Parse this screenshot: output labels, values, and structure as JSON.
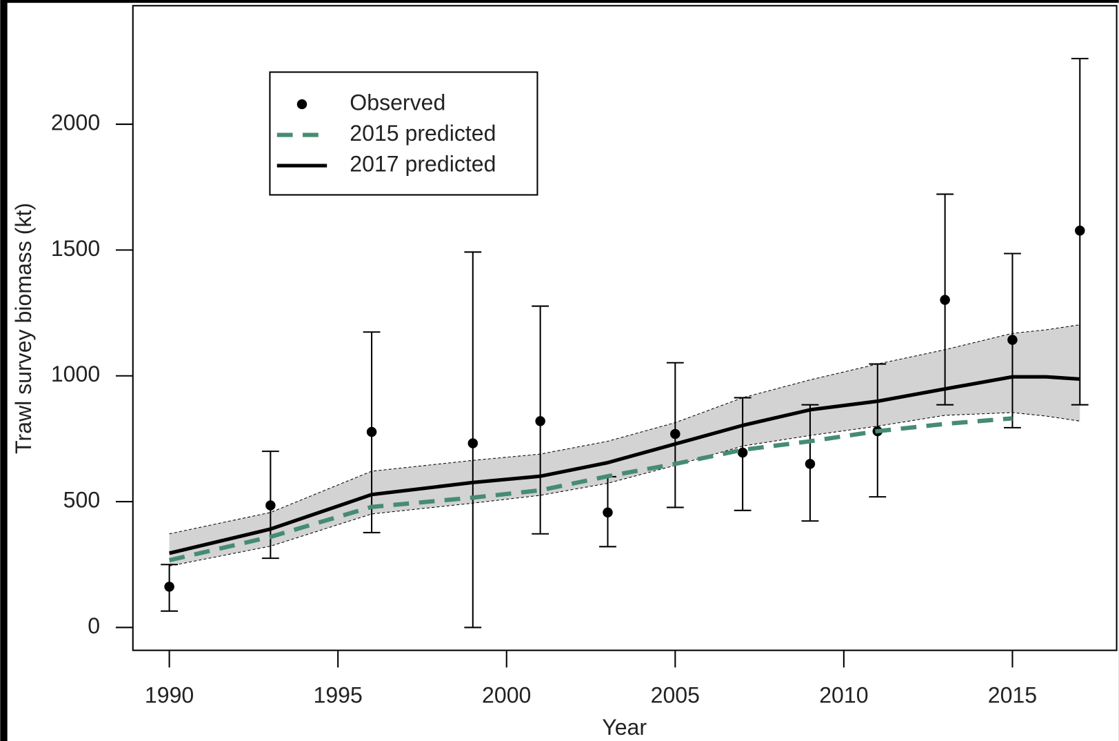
{
  "chart_data": {
    "type": "line",
    "xlabel": "Year",
    "ylabel": "Trawl survey biomass (kt)",
    "xlim": [
      1988.92,
      2018.09
    ],
    "ylim": [
      -91,
      2471
    ],
    "xticks": [
      1990,
      1995,
      2000,
      2005,
      2010,
      2015
    ],
    "yticks": [
      0,
      500,
      1000,
      1500,
      2000
    ],
    "band": {
      "color": "#d3d3d3",
      "x": [
        1990,
        1993,
        1996,
        1999,
        2001,
        2003,
        2005,
        2007,
        2009,
        2011,
        2013,
        2015,
        2016,
        2017
      ],
      "upper": [
        372,
        457,
        621,
        664,
        689,
        740,
        814,
        913,
        984,
        1047,
        1104,
        1169,
        1183,
        1203
      ],
      "lower": [
        244,
        323,
        451,
        494,
        525,
        573,
        644,
        721,
        763,
        800,
        843,
        854,
        840,
        820
      ]
    },
    "series": [
      {
        "name": "Observed",
        "color": "#000000",
        "style": "points",
        "x": [
          1990,
          1993,
          1996,
          1999,
          2001,
          2003,
          2005,
          2007,
          2009,
          2011,
          2013,
          2015,
          2017
        ],
        "values": [
          162,
          485,
          777,
          732,
          820,
          457,
          769,
          695,
          650,
          780,
          1302,
          1143,
          1577
        ],
        "low": [
          65,
          275,
          377,
          0,
          372,
          321,
          477,
          465,
          423,
          519,
          885,
          794,
          885
        ],
        "high": [
          250,
          700,
          1174,
          1492,
          1277,
          599,
          1052,
          913,
          885,
          1047,
          1722,
          1486,
          2261
        ]
      },
      {
        "name": "2015 predicted",
        "color": "#468c72",
        "style": "dashed",
        "x": [
          1990,
          1993,
          1996,
          1999,
          2001,
          2003,
          2005,
          2007,
          2009,
          2011,
          2013,
          2015
        ],
        "values": [
          267,
          360,
          479,
          516,
          545,
          601,
          650,
          706,
          740,
          780,
          809,
          831
        ]
      },
      {
        "name": "2017 predicted",
        "color": "#000000",
        "style": "solid",
        "x": [
          1990,
          1993,
          1996,
          1999,
          2001,
          2003,
          2005,
          2007,
          2009,
          2011,
          2013,
          2015,
          2016,
          2017
        ],
        "values": [
          295,
          391,
          528,
          576,
          601,
          655,
          729,
          803,
          865,
          899,
          948,
          996,
          996,
          987
        ]
      }
    ]
  }
}
